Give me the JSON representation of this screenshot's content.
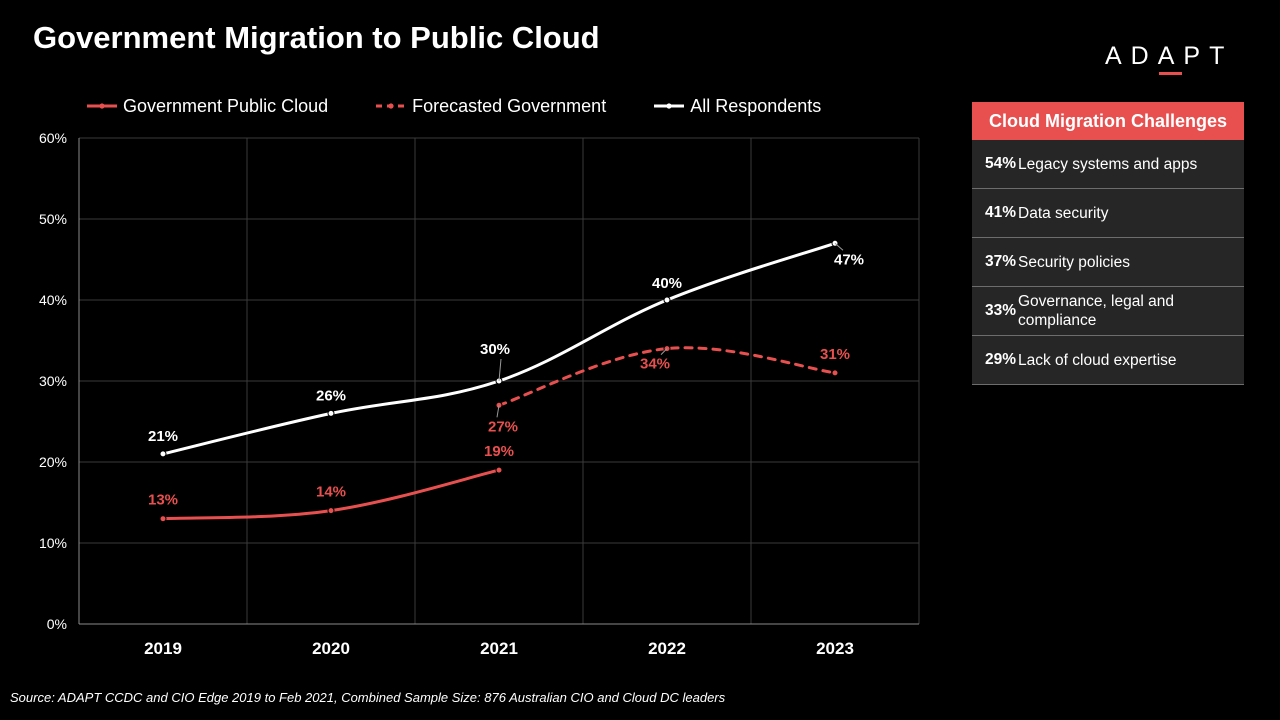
{
  "title": "Government Migration to Public Cloud",
  "logo": {
    "pre": "AD",
    "mark": "A",
    "post": "PT"
  },
  "source": "Source: ADAPT CCDC and CIO Edge 2019  to Feb 2021, Combined Sample Size: 876 Australian CIO and Cloud DC leaders",
  "colors": {
    "red": "#e8504f",
    "white": "#ffffff",
    "background": "#000000",
    "panel_row": "#262626"
  },
  "legend": [
    {
      "label": "Government Public Cloud",
      "style": "solid-red"
    },
    {
      "label": "Forecasted Government",
      "style": "dashed-red"
    },
    {
      "label": "All Respondents",
      "style": "solid-white"
    }
  ],
  "chart_data": {
    "type": "line",
    "categories": [
      "2019",
      "2020",
      "2021",
      "2022",
      "2023"
    ],
    "ylim": [
      0,
      60
    ],
    "yticks": [
      0,
      10,
      20,
      30,
      40,
      50,
      60
    ],
    "ytick_labels": [
      "0%",
      "10%",
      "20%",
      "30%",
      "40%",
      "50%",
      "60%"
    ],
    "grid": true,
    "legend_position": "top",
    "series": [
      {
        "name": "Government Public Cloud",
        "values": [
          13,
          14,
          19,
          null,
          null
        ],
        "labels": [
          "13%",
          "14%",
          "19%",
          "",
          ""
        ],
        "color": "#e8504f",
        "dashed": false
      },
      {
        "name": "Forecasted Government",
        "values": [
          null,
          null,
          27,
          34,
          31
        ],
        "labels": [
          "",
          "",
          "27%",
          "34%",
          "31%"
        ],
        "color": "#e8504f",
        "dashed": true
      },
      {
        "name": "All Respondents",
        "values": [
          21,
          26,
          30,
          40,
          47
        ],
        "labels": [
          "21%",
          "26%",
          "30%",
          "40%",
          "47%"
        ],
        "color": "#ffffff",
        "dashed": false
      }
    ]
  },
  "challenges": {
    "header": "Cloud Migration Challenges",
    "items": [
      {
        "pct": "54%",
        "label": "Legacy systems and apps"
      },
      {
        "pct": "41%",
        "label": "Data security"
      },
      {
        "pct": "37%",
        "label": "Security policies"
      },
      {
        "pct": "33%",
        "label": "Governance, legal and compliance"
      },
      {
        "pct": "29%",
        "label": "Lack of cloud expertise"
      }
    ]
  }
}
